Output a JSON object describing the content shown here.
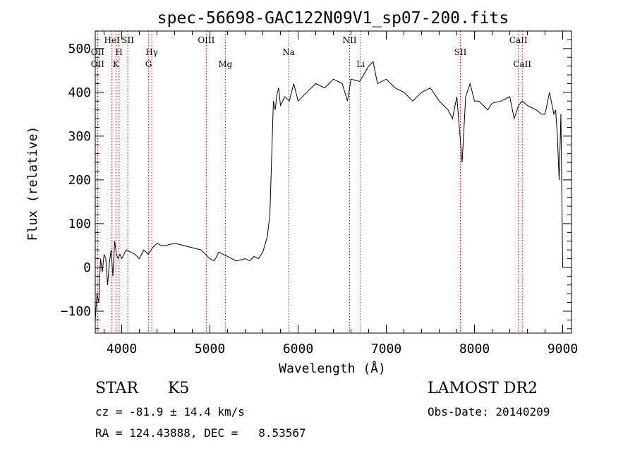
{
  "chart_data": {
    "type": "line",
    "title": "spec-56698-GAC122N09V1_sp07-200.fits",
    "xlabel": "Wavelength (Å)",
    "ylabel": "Flux (relative)",
    "xlim": [
      3700,
      9100
    ],
    "ylim": [
      -150,
      540
    ],
    "xticks": [
      4000,
      5000,
      6000,
      7000,
      8000,
      9000
    ],
    "yticks": [
      -100,
      0,
      100,
      200,
      300,
      400,
      500
    ],
    "x_minor_step": 200,
    "y_minor_step": 20,
    "series": [
      {
        "values_x": [
          3700,
          3720,
          3740,
          3760,
          3780,
          3800,
          3820,
          3840,
          3860,
          3880,
          3900,
          3920,
          3940,
          3960,
          3980,
          4000,
          4050,
          4100,
          4150,
          4200,
          4250,
          4300,
          4350,
          4400,
          4450,
          4500,
          4600,
          4700,
          4800,
          4900,
          5000,
          5050,
          5100,
          5200,
          5300,
          5400,
          5450,
          5500,
          5550,
          5600,
          5650,
          5680,
          5700,
          5720,
          5740,
          5760,
          5780,
          5800,
          5850,
          5900,
          5950,
          6000,
          6100,
          6200,
          6300,
          6400,
          6500,
          6560,
          6600,
          6700,
          6800,
          6850,
          6900,
          7000,
          7100,
          7200,
          7300,
          7400,
          7500,
          7600,
          7700,
          7750,
          7800,
          7840,
          7860,
          7900,
          7950,
          8000,
          8050,
          8100,
          8150,
          8200,
          8300,
          8400,
          8450,
          8500,
          8540,
          8600,
          8700,
          8760,
          8800,
          8850,
          8900,
          8920,
          8940,
          8960,
          8980,
          9000
        ],
        "values_y": [
          -120,
          -60,
          -80,
          20,
          -10,
          30,
          20,
          -40,
          10,
          40,
          -20,
          60,
          30,
          20,
          30,
          20,
          40,
          35,
          30,
          20,
          40,
          30,
          45,
          55,
          50,
          50,
          55,
          50,
          45,
          40,
          20,
          15,
          35,
          25,
          15,
          20,
          15,
          25,
          20,
          35,
          70,
          120,
          250,
          380,
          360,
          395,
          410,
          370,
          390,
          380,
          420,
          380,
          400,
          420,
          410,
          430,
          420,
          380,
          430,
          425,
          460,
          470,
          420,
          430,
          410,
          400,
          380,
          400,
          410,
          380,
          360,
          340,
          390,
          290,
          240,
          390,
          420,
          380,
          380,
          370,
          360,
          375,
          380,
          390,
          340,
          370,
          380,
          370,
          360,
          350,
          350,
          400,
          350,
          360,
          300,
          200,
          350,
          0
        ],
        "color": "#000000"
      }
    ],
    "lines": [
      {
        "label": "OII",
        "wavelength": 3727,
        "row": 1
      },
      {
        "label": "HeI",
        "wavelength": 3889,
        "row": 0
      },
      {
        "label": "H",
        "wavelength": 3969,
        "row": 1
      },
      {
        "label": "K",
        "wavelength": 3934,
        "row": 2
      },
      {
        "label": "SII",
        "wavelength": 4069,
        "row": 0
      },
      {
        "label": "OII",
        "wavelength": 3727,
        "row": 2
      },
      {
        "label": "Hγ",
        "wavelength": 4341,
        "row": 1
      },
      {
        "label": "G",
        "wavelength": 4305,
        "row": 2
      },
      {
        "label": "OIII",
        "wavelength": 4959,
        "row": 0
      },
      {
        "label": "Mg",
        "wavelength": 5175,
        "row": 2
      },
      {
        "label": "Na",
        "wavelength": 5893,
        "row": 1
      },
      {
        "label": "NII",
        "wavelength": 6584,
        "row": 0
      },
      {
        "label": "Li",
        "wavelength": 6708,
        "row": 2
      },
      {
        "label": "SII",
        "wavelength": 7840,
        "row": 1
      },
      {
        "label": "CaII",
        "wavelength": 8498,
        "row": 0
      },
      {
        "label": "CaII",
        "wavelength": 8542,
        "row": 2
      }
    ],
    "line_color": "#cc0000"
  },
  "info": {
    "class": "STAR",
    "subclass": "K5",
    "survey": "LAMOST DR2",
    "cz": "cz = -81.9 ± 14.4 km/s",
    "obs_date": "Obs-Date: 20140209",
    "radec": "RA = 124.43888, DEC =   8.53567"
  }
}
